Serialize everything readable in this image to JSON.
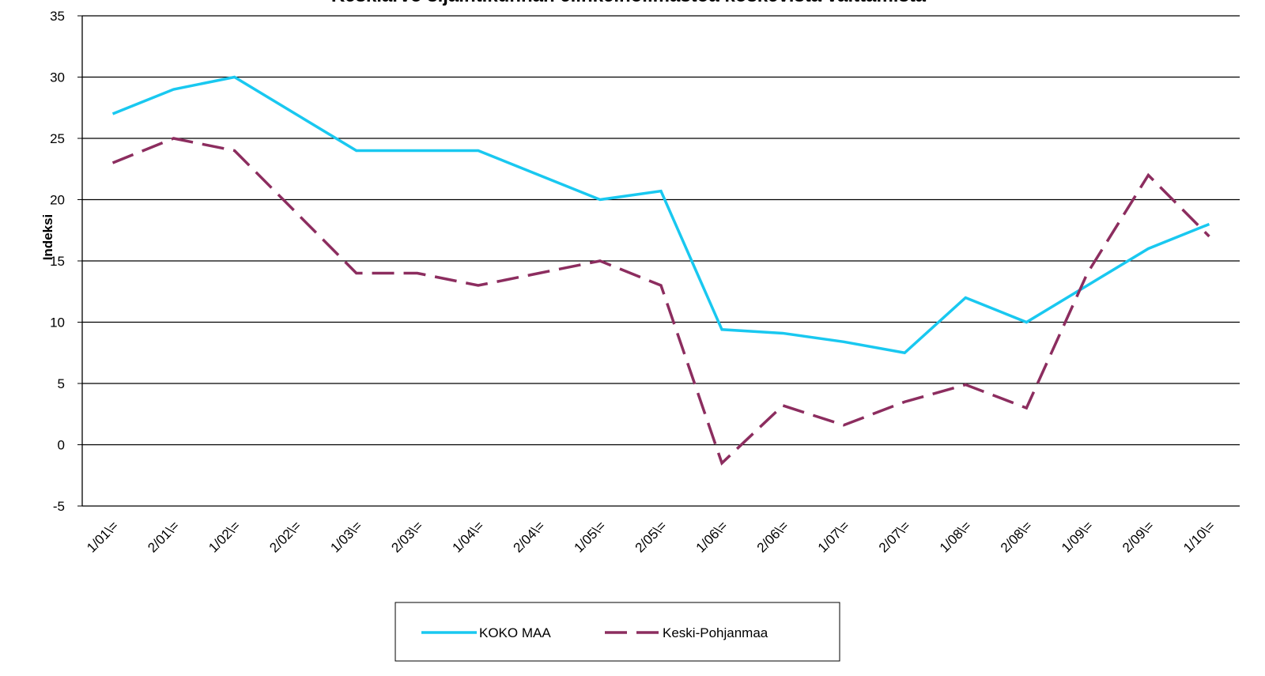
{
  "chart_data": {
    "type": "line",
    "title": "Keskiarvo sijaintikunnan elinkeinoilmastoa koskevista väittämistä",
    "ylabel": "Indeksi",
    "categories": [
      "1/01\\=",
      "2/01\\=",
      "1/02\\=",
      "2/02\\=",
      "1/03\\=",
      "2/03\\=",
      "1/04\\=",
      "2/04\\=",
      "1/05\\=",
      "2/05\\=",
      "1/06\\=",
      "2/06\\=",
      "1/07\\=",
      "2/07\\=",
      "1/08\\=",
      "2/08\\=",
      "1/09\\=",
      "2/09\\=",
      "1/10\\="
    ],
    "series": [
      {
        "name": "KOKO MAA",
        "color": "#19c8f0",
        "dash": false,
        "values": [
          27,
          29,
          30,
          27,
          24,
          24,
          24,
          22,
          20,
          20.7,
          9.4,
          9.1,
          8.4,
          7.5,
          12,
          10,
          13,
          16,
          18
        ]
      },
      {
        "name": "Keski-Pohjanmaa",
        "color": "#8c2d5f",
        "dash": true,
        "values": [
          23,
          25,
          24,
          19,
          14,
          14,
          13,
          14,
          15,
          13,
          -1.5,
          3.2,
          1.6,
          3.5,
          4.9,
          3,
          14,
          22,
          17
        ]
      }
    ],
    "ylim": [
      -5,
      35
    ],
    "yticks": [
      -5,
      0,
      5,
      10,
      15,
      20,
      25,
      30,
      35
    ],
    "grid": true,
    "legend": "bottom"
  }
}
